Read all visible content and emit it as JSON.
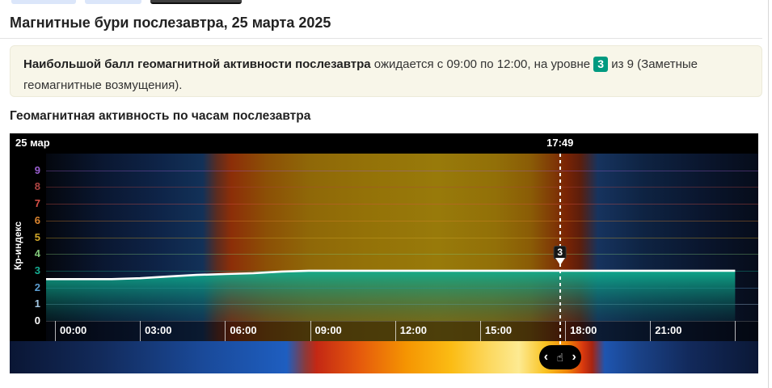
{
  "page": {
    "title": "Магнитные бури послезавтра, 25 марта 2025",
    "summary": {
      "bold": "Наибольшой балл геомагнитной активности послезавтра",
      "before_badge": " ожидается с 09:00 по 12:00, на уровне ",
      "badge": "3",
      "after_badge": " из 9 (Заметные геомагнитные возмущения)."
    },
    "section_title": "Геомагнитная активность по часам послезавтра"
  },
  "chart": {
    "date_label": "25 мар",
    "cursor_time": "17:49",
    "cursor_value": "3",
    "nav": {
      "prev": "‹",
      "next": "›",
      "hand": "☝"
    }
  },
  "colors": {
    "badge_bg": "#009a80",
    "area_fill": "#0fae8f",
    "curve_line": "#ffffff"
  },
  "chart_data": {
    "type": "area",
    "title": "Геомагнитная активность по часам послезавтра",
    "xlabel": "",
    "ylabel": "Кр-индекс",
    "ylim": [
      0,
      9
    ],
    "grid": true,
    "x_hours": [
      0,
      1,
      2,
      3,
      4,
      5,
      6,
      7,
      8,
      9,
      10,
      11,
      12,
      13,
      14,
      15,
      16,
      17,
      18,
      19,
      20,
      21,
      22,
      23,
      24
    ],
    "values": [
      2.5,
      2.5,
      2.5,
      2.55,
      2.65,
      2.75,
      2.8,
      2.85,
      2.95,
      3,
      3,
      3,
      3,
      3,
      3,
      3,
      3,
      3,
      3,
      3,
      3,
      3,
      3,
      3,
      3
    ],
    "x_tick_hours": [
      0,
      3,
      6,
      9,
      12,
      15,
      18,
      21,
      24
    ],
    "x_tick_labels": [
      "00:00",
      "03:00",
      "06:00",
      "09:00",
      "12:00",
      "15:00",
      "18:00",
      "21:00"
    ],
    "y_ticks": [
      0,
      1,
      2,
      3,
      4,
      5,
      6,
      7,
      8,
      9
    ],
    "y_tick_colors": [
      "#ffffff",
      "#a4c8e4",
      "#5d9fd3",
      "#16ad92",
      "#82c87a",
      "#d2a82a",
      "#dd862f",
      "#da5148",
      "#b04543",
      "#9a5fd0"
    ],
    "cursor": {
      "time": "17:49",
      "hour": 17.82,
      "value": 3
    },
    "max_window": {
      "from": "09:00",
      "to": "12:00",
      "level": 3,
      "of": 9
    },
    "legend_position": "none",
    "background": "day-night-gradient"
  }
}
